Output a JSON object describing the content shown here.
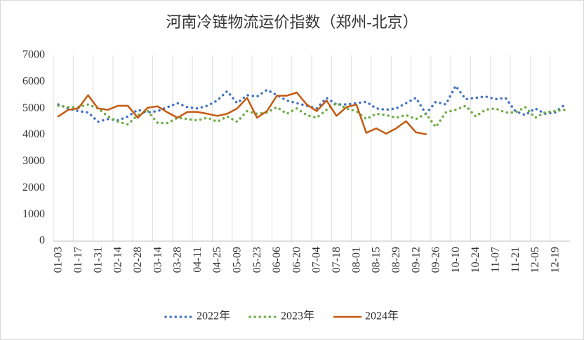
{
  "chart_data": {
    "type": "line",
    "title": "河南冷链物流运价指数（郑州-北京）",
    "categories": [
      "01-03",
      null,
      "01-17",
      null,
      "01-31",
      null,
      "02-14",
      null,
      "02-28",
      null,
      "03-14",
      null,
      "03-28",
      null,
      "04-11",
      null,
      "04-25",
      null,
      "05-09",
      null,
      "05-23",
      null,
      "06-06",
      null,
      "06-20",
      null,
      "07-04",
      null,
      "07-18",
      null,
      "08-01",
      null,
      "08-15",
      null,
      "08-29",
      null,
      "09-12",
      null,
      "09-26",
      null,
      "10-10",
      null,
      "10-24",
      null,
      "11-07",
      null,
      "11-21",
      null,
      "12-05",
      null,
      "12-19",
      null
    ],
    "series": [
      {
        "name": "2022年",
        "color": "#4472c4",
        "dash": "dot",
        "values": [
          5150,
          5000,
          4900,
          4850,
          4500,
          4600,
          4550,
          4700,
          4950,
          4850,
          4900,
          5050,
          5200,
          5050,
          5000,
          5100,
          5300,
          5650,
          5200,
          5500,
          5450,
          5700,
          5500,
          5300,
          5200,
          5100,
          5000,
          5400,
          5150,
          5150,
          5200,
          5250,
          5000,
          4950,
          5000,
          5200,
          5400,
          4800,
          5250,
          5150,
          5850,
          5350,
          5400,
          5450,
          5350,
          5400,
          4900,
          4750,
          5000,
          4800,
          4850,
          5150
        ]
      },
      {
        "name": "2023年",
        "color": "#70ad47",
        "dash": "dot",
        "values": [
          5100,
          5050,
          5050,
          5150,
          5000,
          4700,
          4500,
          4400,
          4750,
          4900,
          4450,
          4450,
          4650,
          4600,
          4550,
          4650,
          4500,
          4700,
          4500,
          4900,
          4800,
          4850,
          5050,
          4800,
          5000,
          4750,
          4650,
          4950,
          5200,
          5000,
          4900,
          4600,
          4800,
          4750,
          4650,
          4750,
          4600,
          4800,
          4300,
          4850,
          4950,
          5100,
          4700,
          4950,
          5000,
          4850,
          4850,
          5050,
          4650,
          4850,
          4900,
          4950
        ]
      },
      {
        "name": "2024年",
        "color": "#c55a11",
        "dash": "solid",
        "values": [
          4700,
          4950,
          5000,
          5500,
          5000,
          4950,
          5100,
          5100,
          4650,
          5030,
          5080,
          4850,
          4650,
          4870,
          4870,
          4800,
          4720,
          4800,
          5000,
          5400,
          4650,
          4900,
          5480,
          5480,
          5600,
          5150,
          4900,
          5300,
          4720,
          5050,
          5150,
          4080,
          4250,
          4050,
          4250,
          4520,
          4100,
          4030,
          null,
          null,
          null,
          null,
          null,
          null,
          null,
          null,
          null,
          null,
          null,
          null,
          null,
          null
        ]
      }
    ],
    "ylim": [
      0,
      7000
    ],
    "yticks": [
      0,
      1000,
      2000,
      3000,
      4000,
      5000,
      6000,
      7000
    ],
    "grid": "x",
    "legend": "bottom"
  }
}
